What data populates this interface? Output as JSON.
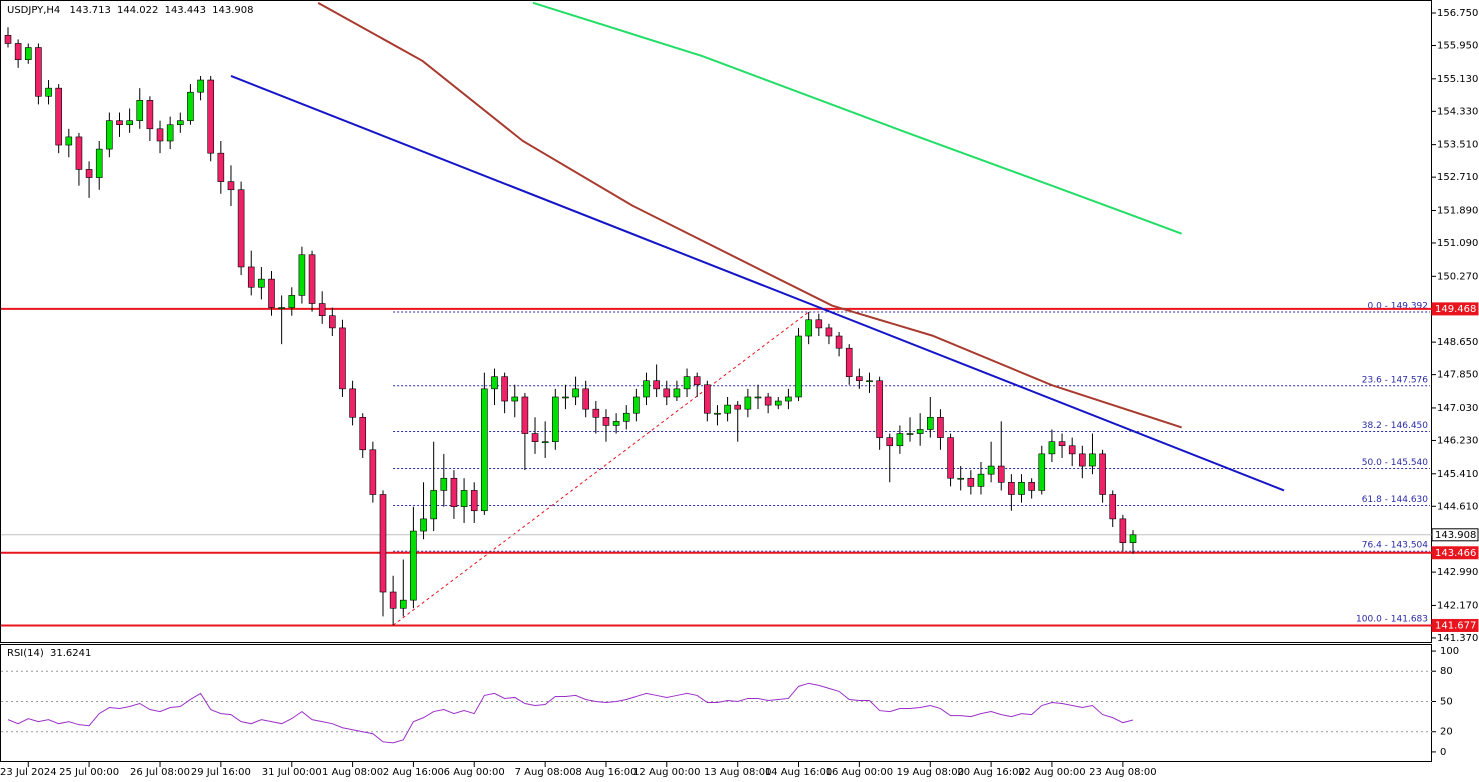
{
  "chart_data": [
    {
      "type": "candlestick",
      "title": "USDJPY,H4",
      "ohlc": [
        [
          156.2,
          156.4,
          155.9,
          156.0
        ],
        [
          156.0,
          156.1,
          155.4,
          155.6
        ],
        [
          155.6,
          156.0,
          155.5,
          155.9
        ],
        [
          155.9,
          156.0,
          154.5,
          154.7
        ],
        [
          154.7,
          155.1,
          154.5,
          154.9
        ],
        [
          154.9,
          155.0,
          153.3,
          153.5
        ],
        [
          153.5,
          153.9,
          153.2,
          153.7
        ],
        [
          153.7,
          153.8,
          152.5,
          152.9
        ],
        [
          152.9,
          153.1,
          152.2,
          152.7
        ],
        [
          152.7,
          153.6,
          152.4,
          153.4
        ],
        [
          153.4,
          154.3,
          153.2,
          154.1
        ],
        [
          154.1,
          154.3,
          153.7,
          154.0
        ],
        [
          154.0,
          154.4,
          153.8,
          154.1
        ],
        [
          154.1,
          154.9,
          153.9,
          154.6
        ],
        [
          154.6,
          154.7,
          153.6,
          153.9
        ],
        [
          153.9,
          154.1,
          153.3,
          153.6
        ],
        [
          153.6,
          154.2,
          153.4,
          154.0
        ],
        [
          154.0,
          154.3,
          153.8,
          154.1
        ],
        [
          154.1,
          155.0,
          154.0,
          154.8
        ],
        [
          154.8,
          155.2,
          154.6,
          155.1
        ],
        [
          155.1,
          155.2,
          153.1,
          153.3
        ],
        [
          153.3,
          153.6,
          152.3,
          152.6
        ],
        [
          152.6,
          153.0,
          152.0,
          152.4
        ],
        [
          152.4,
          152.6,
          150.3,
          150.5
        ],
        [
          150.5,
          150.9,
          149.8,
          150.0
        ],
        [
          150.0,
          150.5,
          149.7,
          150.2
        ],
        [
          150.2,
          150.4,
          149.3,
          149.5
        ],
        [
          149.5,
          149.8,
          148.6,
          149.5
        ],
        [
          149.5,
          150.0,
          149.3,
          149.8
        ],
        [
          149.8,
          151.0,
          149.6,
          150.8
        ],
        [
          150.8,
          150.9,
          149.4,
          149.6
        ],
        [
          149.6,
          149.9,
          149.1,
          149.3
        ],
        [
          149.3,
          149.5,
          148.8,
          149.0
        ],
        [
          149.0,
          149.2,
          147.3,
          147.5
        ],
        [
          147.5,
          147.7,
          146.6,
          146.8
        ],
        [
          146.8,
          146.9,
          145.8,
          146.0
        ],
        [
          146.0,
          146.2,
          144.7,
          144.9
        ],
        [
          144.9,
          145.0,
          141.9,
          142.5
        ],
        [
          142.5,
          142.9,
          141.683,
          142.1
        ],
        [
          142.1,
          143.3,
          141.9,
          142.3
        ],
        [
          142.3,
          144.6,
          142.1,
          144.0
        ],
        [
          144.0,
          145.2,
          143.8,
          144.3
        ],
        [
          144.3,
          146.2,
          144.0,
          145.0
        ],
        [
          145.0,
          145.9,
          144.6,
          145.3
        ],
        [
          145.3,
          145.5,
          144.3,
          144.6
        ],
        [
          144.6,
          145.3,
          144.2,
          145.0
        ],
        [
          145.0,
          145.2,
          144.2,
          144.5
        ],
        [
          144.5,
          147.9,
          144.4,
          147.5
        ],
        [
          147.5,
          148.0,
          147.1,
          147.8
        ],
        [
          147.8,
          147.9,
          146.9,
          147.2
        ],
        [
          147.2,
          147.6,
          146.8,
          147.3
        ],
        [
          147.3,
          147.4,
          145.5,
          146.4
        ],
        [
          146.4,
          146.8,
          145.9,
          146.2
        ],
        [
          146.2,
          146.7,
          145.8,
          146.2
        ],
        [
          146.2,
          147.5,
          146.0,
          147.3
        ],
        [
          147.3,
          147.6,
          147.0,
          147.3
        ],
        [
          147.3,
          147.8,
          147.1,
          147.5
        ],
        [
          147.5,
          147.7,
          146.8,
          147.0
        ],
        [
          147.0,
          147.2,
          146.4,
          146.8
        ],
        [
          146.8,
          147.0,
          146.2,
          146.6
        ],
        [
          146.6,
          146.9,
          146.4,
          146.7
        ],
        [
          146.7,
          147.1,
          146.5,
          146.9
        ],
        [
          146.9,
          147.5,
          146.7,
          147.3
        ],
        [
          147.3,
          147.9,
          147.1,
          147.7
        ],
        [
          147.7,
          148.1,
          147.3,
          147.5
        ],
        [
          147.5,
          147.7,
          147.1,
          147.3
        ],
        [
          147.3,
          147.7,
          147.2,
          147.5
        ],
        [
          147.5,
          148.0,
          147.3,
          147.8
        ],
        [
          147.8,
          147.9,
          147.3,
          147.6
        ],
        [
          147.6,
          147.7,
          146.7,
          146.9
        ],
        [
          146.9,
          147.1,
          146.6,
          146.9
        ],
        [
          146.9,
          147.3,
          146.7,
          147.1
        ],
        [
          147.1,
          147.2,
          146.2,
          147.0
        ],
        [
          147.0,
          147.5,
          146.8,
          147.3
        ],
        [
          147.3,
          147.6,
          147.0,
          147.3
        ],
        [
          147.3,
          147.4,
          146.9,
          147.1
        ],
        [
          147.1,
          147.3,
          147.0,
          147.2
        ],
        [
          147.2,
          147.5,
          147.0,
          147.3
        ],
        [
          147.3,
          149.0,
          147.2,
          148.8
        ],
        [
          148.8,
          149.392,
          148.6,
          149.2
        ],
        [
          149.2,
          149.35,
          148.8,
          149.0
        ],
        [
          149.0,
          149.1,
          148.6,
          148.8
        ],
        [
          148.8,
          148.9,
          148.3,
          148.5
        ],
        [
          148.5,
          148.6,
          147.6,
          147.8
        ],
        [
          147.8,
          148.0,
          147.5,
          147.7
        ],
        [
          147.7,
          147.9,
          147.4,
          147.7
        ],
        [
          147.7,
          147.8,
          146.0,
          146.3
        ],
        [
          146.3,
          146.4,
          145.2,
          146.1
        ],
        [
          146.1,
          146.6,
          145.9,
          146.4
        ],
        [
          146.4,
          146.8,
          146.2,
          146.4
        ],
        [
          146.4,
          146.9,
          146.1,
          146.5
        ],
        [
          146.5,
          147.3,
          146.3,
          146.8
        ],
        [
          146.8,
          147.0,
          146.0,
          146.3
        ],
        [
          146.3,
          146.4,
          145.1,
          145.3
        ],
        [
          145.3,
          145.6,
          145.0,
          145.3
        ],
        [
          145.3,
          145.5,
          144.9,
          145.1
        ],
        [
          145.1,
          145.7,
          144.9,
          145.4
        ],
        [
          145.4,
          146.2,
          145.2,
          145.6
        ],
        [
          145.6,
          146.7,
          145.0,
          145.2
        ],
        [
          145.2,
          145.4,
          144.5,
          144.9
        ],
        [
          144.9,
          145.4,
          144.7,
          145.2
        ],
        [
          145.2,
          145.3,
          144.8,
          145.0
        ],
        [
          145.0,
          146.1,
          144.9,
          145.9
        ],
        [
          145.9,
          146.5,
          145.7,
          146.2
        ],
        [
          146.2,
          146.4,
          145.8,
          146.1
        ],
        [
          146.1,
          146.3,
          145.6,
          145.9
        ],
        [
          145.9,
          146.1,
          145.3,
          145.6
        ],
        [
          145.6,
          146.4,
          145.4,
          145.9
        ],
        [
          145.9,
          146.0,
          144.7,
          144.9
        ],
        [
          144.9,
          145.0,
          144.1,
          144.3
        ],
        [
          144.3,
          144.4,
          143.5,
          143.713
        ],
        [
          143.713,
          144.022,
          143.443,
          143.908
        ]
      ],
      "up_color": "#00e000",
      "down_color": "#ee2266",
      "ylim": [
        141.27,
        157.045
      ],
      "yticks": [
        {
          "value": 156.75,
          "label": "156.750"
        },
        {
          "value": 155.95,
          "label": "155.950"
        },
        {
          "value": 155.13,
          "label": "155.130"
        },
        {
          "value": 154.33,
          "label": "154.330"
        },
        {
          "value": 153.51,
          "label": "153.510"
        },
        {
          "value": 152.71,
          "label": "152.710"
        },
        {
          "value": 151.89,
          "label": "151.890"
        },
        {
          "value": 151.09,
          "label": "151.090"
        },
        {
          "value": 150.27,
          "label": "150.270"
        },
        {
          "value": 148.65,
          "label": "148.650"
        },
        {
          "value": 147.85,
          "label": "147.850"
        },
        {
          "value": 147.03,
          "label": "147.030"
        },
        {
          "value": 146.23,
          "label": "146.230"
        },
        {
          "value": 145.41,
          "label": "145.410"
        },
        {
          "value": 144.61,
          "label": "144.610"
        },
        {
          "value": 142.99,
          "label": "142.990"
        },
        {
          "value": 142.17,
          "label": "142.170"
        },
        {
          "value": 141.37,
          "label": "141.370"
        }
      ],
      "xticks": [
        {
          "value": 2,
          "label": "23 Jul 2024"
        },
        {
          "value": 8,
          "label": "25 Jul 00:00"
        },
        {
          "value": 15,
          "label": "26 Jul 08:00"
        },
        {
          "value": 21,
          "label": "29 Jul 16:00"
        },
        {
          "value": 28,
          "label": "31 Jul 00:00"
        },
        {
          "value": 34,
          "label": "1 Aug 08:00"
        },
        {
          "value": 40,
          "label": "2 Aug 16:00"
        },
        {
          "value": 46,
          "label": "6 Aug 00:00"
        },
        {
          "value": 53,
          "label": "7 Aug 08:00"
        },
        {
          "value": 59,
          "label": "8 Aug 16:00"
        },
        {
          "value": 65,
          "label": "12 Aug 00:00"
        },
        {
          "value": 72,
          "label": "13 Aug 08:00"
        },
        {
          "value": 78,
          "label": "14 Aug 16:00"
        },
        {
          "value": 84,
          "label": "16 Aug 00:00"
        },
        {
          "value": 91,
          "label": "19 Aug 08:00"
        },
        {
          "value": 97,
          "label": "20 Aug 16:00"
        },
        {
          "value": 103,
          "label": "22 Aug 00:00"
        },
        {
          "value": 110,
          "label": "23 Aug 08:00"
        }
      ],
      "overlays": [
        {
          "color": "#a83a2e",
          "x": [
            30.6,
            40.9,
            50.8,
            61.6,
            74.4,
            81.3,
            91.2,
            103.0,
            115.8
          ],
          "values": [
            157.0,
            155.57,
            153.6,
            152.01,
            150.41,
            149.55,
            148.81,
            147.59,
            146.55
          ]
        },
        {
          "color": "#22dd66",
          "x": [
            51.8,
            68.5,
            88.2,
            103.0,
            115.8
          ],
          "values": [
            157.0,
            155.69,
            153.85,
            152.5,
            151.32
          ]
        },
        {
          "color": "#1515c8",
          "x": [
            22.0,
            125.9
          ],
          "values": [
            155.2,
            145.0
          ]
        }
      ],
      "levels": [
        {
          "value": 149.468,
          "color": "#e8141e",
          "text_color": "#ffffff"
        },
        {
          "value": 143.908,
          "color": "#c0c0c0",
          "text_color": "#000000"
        },
        {
          "value": 143.466,
          "color": "#e8141e",
          "text_color": "#ffffff"
        },
        {
          "value": 141.677,
          "color": "#e8141e",
          "text_color": "#ffffff"
        }
      ],
      "fib_anchor_x": [
        38,
        79
      ],
      "fib": [
        {
          "value": 149.392,
          "label": "0.0 - 149.392"
        },
        {
          "value": 147.576,
          "label": "23.6 - 147.576"
        },
        {
          "value": 146.45,
          "label": "38.2 - 146.450"
        },
        {
          "value": 145.54,
          "label": "50.0 - 145.540"
        },
        {
          "value": 144.63,
          "label": "61.8 - 144.630"
        },
        {
          "value": 143.504,
          "label": "76.4 - 143.504"
        },
        {
          "value": 141.683,
          "label": "100.0 - 141.683"
        }
      ]
    },
    {
      "type": "line",
      "title": "RSI(14)",
      "color": "#9b30c8",
      "values": [
        32,
        28,
        33,
        30,
        32,
        28,
        30,
        27,
        26,
        38,
        44,
        43,
        45,
        48,
        42,
        40,
        44,
        45,
        52,
        58,
        42,
        38,
        37,
        30,
        28,
        32,
        30,
        28,
        33,
        40,
        32,
        30,
        28,
        24,
        22,
        20,
        18,
        10,
        9,
        12,
        30,
        34,
        40,
        42,
        38,
        41,
        38,
        56,
        58,
        53,
        54,
        48,
        46,
        47,
        55,
        55,
        56,
        52,
        50,
        49,
        50,
        52,
        55,
        58,
        56,
        54,
        56,
        58,
        56,
        49,
        49,
        51,
        50,
        53,
        53,
        51,
        52,
        53,
        65,
        68,
        66,
        63,
        60,
        52,
        51,
        51,
        41,
        40,
        43,
        43,
        44,
        46,
        43,
        36,
        36,
        35,
        38,
        40,
        37,
        35,
        38,
        37,
        46,
        49,
        48,
        46,
        44,
        46,
        37,
        34,
        29,
        31.6241
      ],
      "ylim": [
        -10,
        106
      ],
      "yticks": [
        0,
        20,
        50,
        80,
        100
      ]
    }
  ]
}
